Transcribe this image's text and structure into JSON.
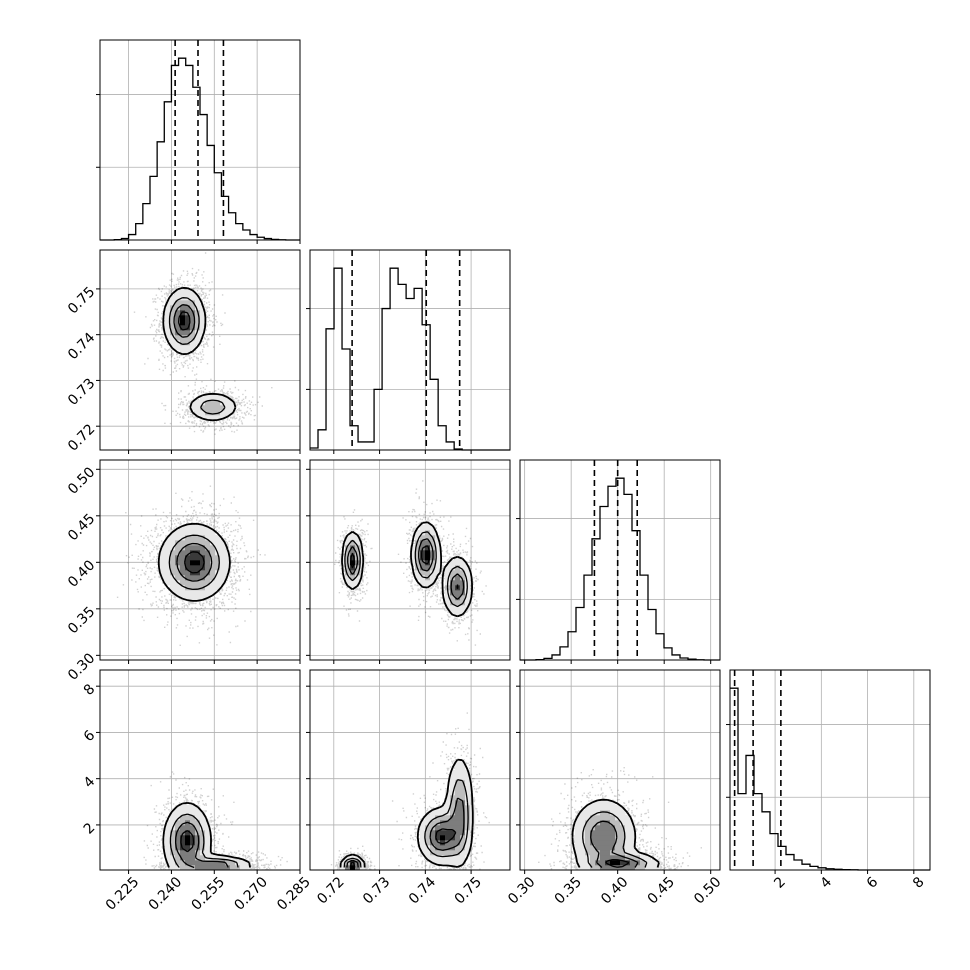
{
  "chart_data": {
    "type": "corner",
    "title": "",
    "parameters": [
      {
        "index": 0,
        "range": [
          0.215,
          0.285
        ],
        "ticks": [
          0.225,
          0.24,
          0.255,
          0.27,
          0.285
        ],
        "tick_labels": [
          "0.225",
          "0.240",
          "0.255",
          "0.270",
          "0.285"
        ],
        "quantiles": [
          0.2413,
          0.2493,
          0.2582
        ]
      },
      {
        "index": 1,
        "range": [
          0.7148,
          0.7585
        ],
        "ticks": [
          0.72,
          0.73,
          0.74,
          0.75
        ],
        "tick_labels": [
          "0.72",
          "0.73",
          "0.74",
          "0.75"
        ],
        "quantiles": [
          0.724,
          0.7402,
          0.7475
        ]
      },
      {
        "index": 2,
        "range": [
          0.295,
          0.51
        ],
        "ticks": [
          0.3,
          0.35,
          0.4,
          0.45,
          0.5
        ],
        "tick_labels": [
          "0.30",
          "0.35",
          "0.40",
          "0.45",
          "0.50"
        ],
        "quantiles": [
          0.375,
          0.4,
          0.421
        ]
      },
      {
        "index": 3,
        "range": [
          0.05,
          8.7
        ],
        "ticks": [
          2,
          4,
          6,
          8
        ],
        "tick_labels": [
          "2",
          "4",
          "6",
          "8"
        ],
        "quantiles": [
          0.25,
          1.05,
          2.25
        ]
      }
    ],
    "histograms": [
      {
        "param": 0,
        "bin_edges": [
          0.215,
          0.2175,
          0.22,
          0.2225,
          0.225,
          0.2275,
          0.23,
          0.2325,
          0.235,
          0.2375,
          0.24,
          0.2425,
          0.245,
          0.2475,
          0.25,
          0.2525,
          0.255,
          0.2575,
          0.26,
          0.2625,
          0.265,
          0.2675,
          0.27,
          0.2725,
          0.275,
          0.2775,
          0.28,
          0.2825,
          0.285
        ],
        "counts": [
          0,
          0,
          2,
          8,
          30,
          90,
          200,
          350,
          540,
          760,
          960,
          1000,
          960,
          840,
          690,
          520,
          370,
          240,
          150,
          90,
          55,
          30,
          15,
          8,
          3,
          1,
          0,
          0
        ]
      },
      {
        "param": 1,
        "bin_edges": [
          0.7148,
          0.71655,
          0.7183,
          0.72005,
          0.7218,
          0.72355,
          0.7253,
          0.72705,
          0.7288,
          0.73055,
          0.7323,
          0.73405,
          0.7358,
          0.73755,
          0.7393,
          0.74105,
          0.7428,
          0.74455,
          0.7463,
          0.74805,
          0.7498,
          0.75155,
          0.7533,
          0.75505,
          0.7568,
          0.75855
        ],
        "counts": [
          10,
          100,
          600,
          900,
          500,
          120,
          40,
          40,
          300,
          700,
          900,
          820,
          750,
          800,
          620,
          350,
          120,
          40,
          5,
          0,
          0,
          0,
          0,
          0,
          0
        ]
      },
      {
        "param": 2,
        "bin_edges": [
          0.295,
          0.3036,
          0.3122,
          0.3208,
          0.3294,
          0.338,
          0.3466,
          0.3552,
          0.3638,
          0.3724,
          0.381,
          0.3896,
          0.3982,
          0.4068,
          0.4154,
          0.424,
          0.4326,
          0.4412,
          0.4498,
          0.4584,
          0.467,
          0.4756,
          0.4842,
          0.4928,
          0.5014,
          0.51
        ],
        "counts": [
          0,
          0,
          2,
          8,
          25,
          65,
          140,
          260,
          420,
          600,
          760,
          860,
          900,
          820,
          640,
          420,
          250,
          130,
          60,
          25,
          10,
          4,
          1,
          0,
          0
        ]
      },
      {
        "param": 3,
        "bin_edges": [
          0.05,
          0.396,
          0.742,
          1.088,
          1.434,
          1.78,
          2.126,
          2.472,
          2.818,
          3.164,
          3.51,
          3.856,
          4.202,
          4.548,
          4.894,
          5.24,
          5.586,
          5.932,
          6.278,
          6.624,
          6.97,
          7.316,
          7.662,
          8.008,
          8.354,
          8.7
        ],
        "counts": [
          1000,
          420,
          630,
          420,
          320,
          200,
          130,
          85,
          55,
          32,
          20,
          12,
          7,
          4,
          2,
          1,
          0,
          0,
          0,
          0,
          0,
          0,
          0,
          0,
          0
        ]
      }
    ],
    "pairs": [
      {
        "x_param": 0,
        "y_param": 1,
        "modes": [
          {
            "mx": 0.2445,
            "my": 0.743,
            "sx": 0.0035,
            "sy": 0.0035,
            "w": 0.65
          },
          {
            "mx": 0.2545,
            "my": 0.7242,
            "sx": 0.0045,
            "sy": 0.0016,
            "w": 0.35
          }
        ]
      },
      {
        "x_param": 0,
        "y_param": 2,
        "modes": [
          {
            "mx": 0.248,
            "my": 0.4,
            "sx": 0.006,
            "sy": 0.02,
            "w": 1.0
          }
        ]
      },
      {
        "x_param": 1,
        "y_param": 2,
        "modes": [
          {
            "mx": 0.7241,
            "my": 0.402,
            "sx": 0.0011,
            "sy": 0.015,
            "w": 0.34
          },
          {
            "mx": 0.7401,
            "my": 0.408,
            "sx": 0.0015,
            "sy": 0.017,
            "w": 0.36
          },
          {
            "mx": 0.747,
            "my": 0.374,
            "sx": 0.0016,
            "sy": 0.016,
            "w": 0.3
          }
        ]
      },
      {
        "x_param": 0,
        "y_param": 3,
        "modes": [
          {
            "mx": 0.2455,
            "my": 1.3,
            "sx": 0.004,
            "sy": 0.8,
            "w": 0.55
          },
          {
            "mx": 0.256,
            "my": 0.25,
            "sx": 0.006,
            "sy": 0.2,
            "w": 0.45
          }
        ]
      },
      {
        "x_param": 1,
        "y_param": 3,
        "modes": [
          {
            "mx": 0.7241,
            "my": 0.25,
            "sx": 0.0012,
            "sy": 0.2,
            "w": 0.4
          },
          {
            "mx": 0.7435,
            "my": 1.5,
            "sx": 0.0025,
            "sy": 0.6,
            "w": 0.35
          },
          {
            "mx": 0.7475,
            "my": 2.6,
            "sx": 0.0015,
            "sy": 1.2,
            "w": 0.25
          }
        ]
      },
      {
        "x_param": 2,
        "y_param": 3,
        "modes": [
          {
            "mx": 0.385,
            "my": 1.5,
            "sx": 0.017,
            "sy": 0.8,
            "w": 0.5
          },
          {
            "mx": 0.405,
            "my": 0.3,
            "sx": 0.02,
            "sy": 0.25,
            "w": 0.5
          }
        ]
      }
    ],
    "contour_levels": 4,
    "grid": true
  }
}
